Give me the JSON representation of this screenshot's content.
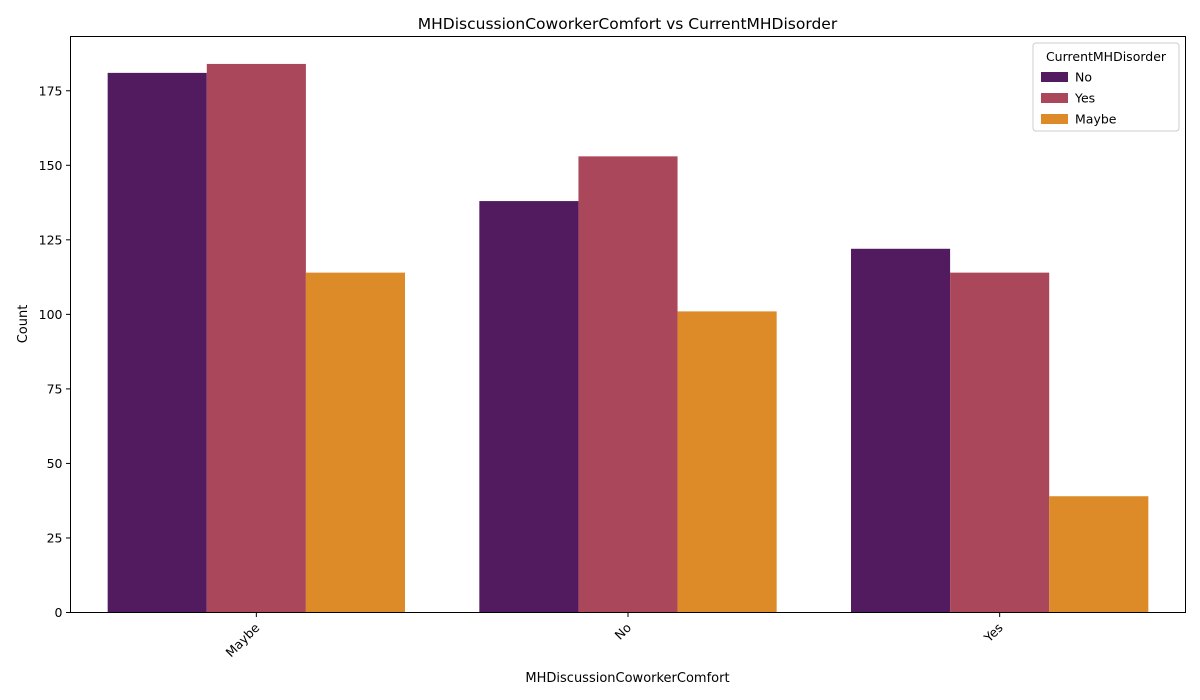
{
  "chart_data": {
    "type": "bar",
    "title": "MHDiscussionCoworkerComfort vs CurrentMHDisorder",
    "xlabel": "MHDiscussionCoworkerComfort",
    "ylabel": "Count",
    "categories": [
      "Maybe",
      "No",
      "Yes"
    ],
    "series": [
      {
        "name": "No",
        "color": "#521b5f",
        "values": [
          181,
          138,
          122
        ]
      },
      {
        "name": "Yes",
        "color": "#aa475a",
        "values": [
          184,
          153,
          114
        ]
      },
      {
        "name": "Maybe",
        "color": "#dc8b28",
        "values": [
          114,
          101,
          39
        ]
      }
    ],
    "ylim": [
      0,
      193.2
    ],
    "yticks": [
      0,
      25,
      50,
      75,
      100,
      125,
      150,
      175
    ],
    "grid": false,
    "legend": {
      "title": "CurrentMHDisorder",
      "placement": "top-right"
    }
  }
}
